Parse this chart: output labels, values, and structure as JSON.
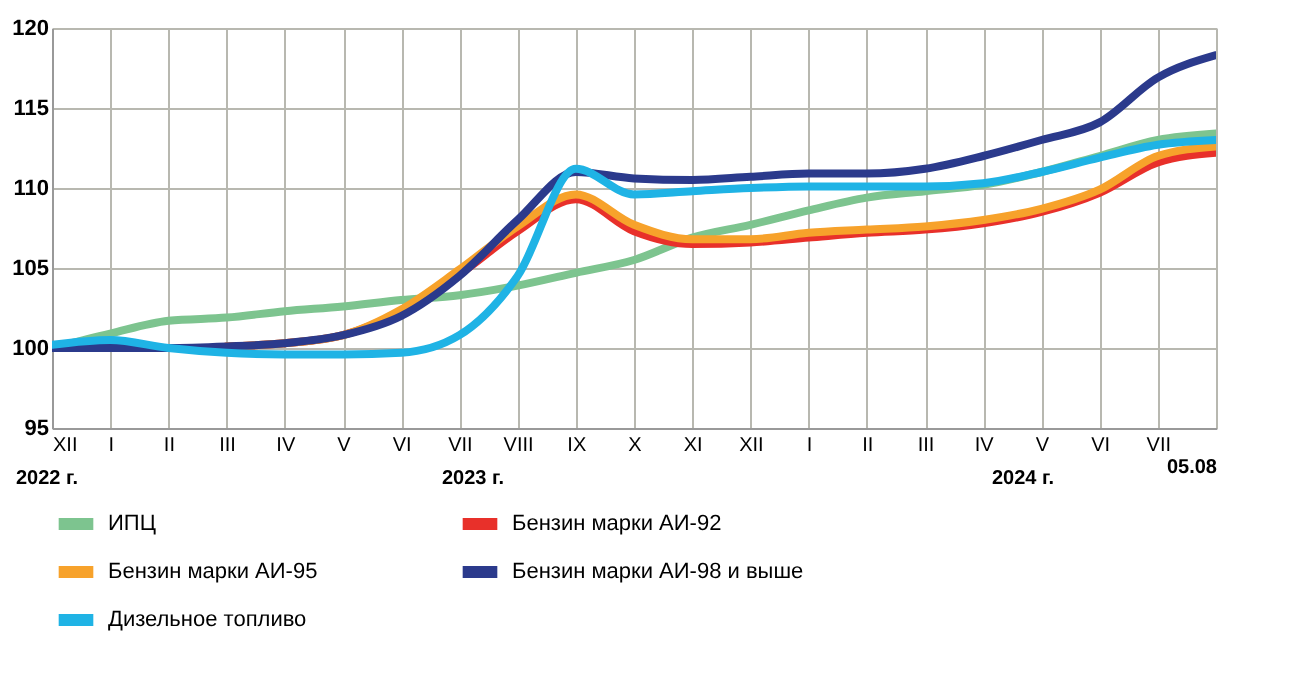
{
  "chart_data": {
    "type": "line",
    "categories": [
      "XII",
      "I",
      "II",
      "III",
      "IV",
      "V",
      "VI",
      "VII",
      "VIII",
      "IX",
      "X",
      "XI",
      "XII",
      "I",
      "II",
      "III",
      "IV",
      "V",
      "VI",
      "VII",
      "05.08"
    ],
    "series": [
      {
        "name": "ИПЦ",
        "color": "#7dc48f",
        "values": [
          100,
          100.9,
          101.7,
          101.9,
          102.3,
          102.6,
          103.0,
          103.3,
          103.9,
          104.7,
          105.5,
          106.9,
          107.7,
          108.6,
          109.4,
          109.8,
          110.2,
          111.0,
          112.0,
          113.0,
          113.4
        ]
      },
      {
        "name": "Бензин марки АИ-92",
        "color": "#e8302a",
        "values": [
          null,
          null,
          null,
          100.1,
          100.3,
          100.8,
          102.3,
          104.6,
          107.3,
          109.3,
          107.3,
          106.5,
          106.6,
          106.9,
          107.2,
          107.4,
          107.8,
          108.5,
          109.7,
          111.6,
          112.2
        ]
      },
      {
        "name": "Бензин марки АИ-95",
        "color": "#f7a22b",
        "values": [
          null,
          null,
          null,
          100.1,
          100.3,
          100.8,
          102.4,
          104.9,
          107.6,
          109.6,
          107.7,
          106.8,
          106.8,
          107.2,
          107.4,
          107.6,
          108.0,
          108.7,
          109.9,
          112.0,
          112.6
        ]
      },
      {
        "name": "Бензин марки АИ-98 и выше",
        "color": "#2b3a8c",
        "values": [
          100,
          100,
          100,
          100.1,
          100.3,
          100.8,
          102.0,
          104.5,
          108.0,
          111.0,
          110.6,
          110.5,
          110.7,
          110.9,
          110.9,
          111.2,
          112.0,
          113.0,
          114.1,
          116.9,
          118.3
        ]
      },
      {
        "name": "Дизельное топливо",
        "color": "#1fb3e5",
        "values": [
          100.2,
          100.5,
          100.0,
          99.7,
          99.6,
          99.6,
          99.7,
          100.8,
          104.5,
          111.2,
          109.6,
          109.8,
          110.0,
          110.1,
          110.1,
          110.1,
          110.3,
          111.0,
          111.9,
          112.7,
          113.0
        ]
      }
    ],
    "ylim": [
      95,
      120
    ],
    "yticks": [
      95,
      100,
      105,
      110,
      115,
      120
    ],
    "annotations": [
      "2022 г.",
      "2023 г.",
      "2024 г."
    ],
    "grid": true,
    "legend": "bottom",
    "marker": "none",
    "line_style": "solid"
  }
}
